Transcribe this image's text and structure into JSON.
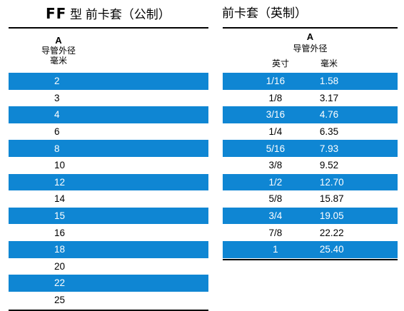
{
  "left": {
    "title_prefix": "FF",
    "title_rest": " 型 前卡套（公制）",
    "header_letter": "A",
    "header_label": "导管外径",
    "header_unit": "毫米",
    "rows": [
      "2",
      "3",
      "4",
      "6",
      "8",
      "10",
      "12",
      "14",
      "15",
      "16",
      "18",
      "20",
      "22",
      "25"
    ]
  },
  "right": {
    "title": "前卡套（英制）",
    "header_letter": "A",
    "header_label": "导管外径",
    "col_inch": "英寸",
    "col_mm": "毫米",
    "rows": [
      {
        "inch": "1/16",
        "mm": "1.58"
      },
      {
        "inch": "1/8",
        "mm": "3.17"
      },
      {
        "inch": "3/16",
        "mm": "4.76"
      },
      {
        "inch": "1/4",
        "mm": "6.35"
      },
      {
        "inch": "5/16",
        "mm": "7.93"
      },
      {
        "inch": "3/8",
        "mm": "9.52"
      },
      {
        "inch": "1/2",
        "mm": "12.70"
      },
      {
        "inch": "5/8",
        "mm": "15.87"
      },
      {
        "inch": "3/4",
        "mm": "19.05"
      },
      {
        "inch": "7/8",
        "mm": "22.22"
      },
      {
        "inch": "1",
        "mm": "25.40"
      }
    ]
  },
  "colors": {
    "stripe": "#0f86d3",
    "stripe_text": "#ffffff"
  }
}
